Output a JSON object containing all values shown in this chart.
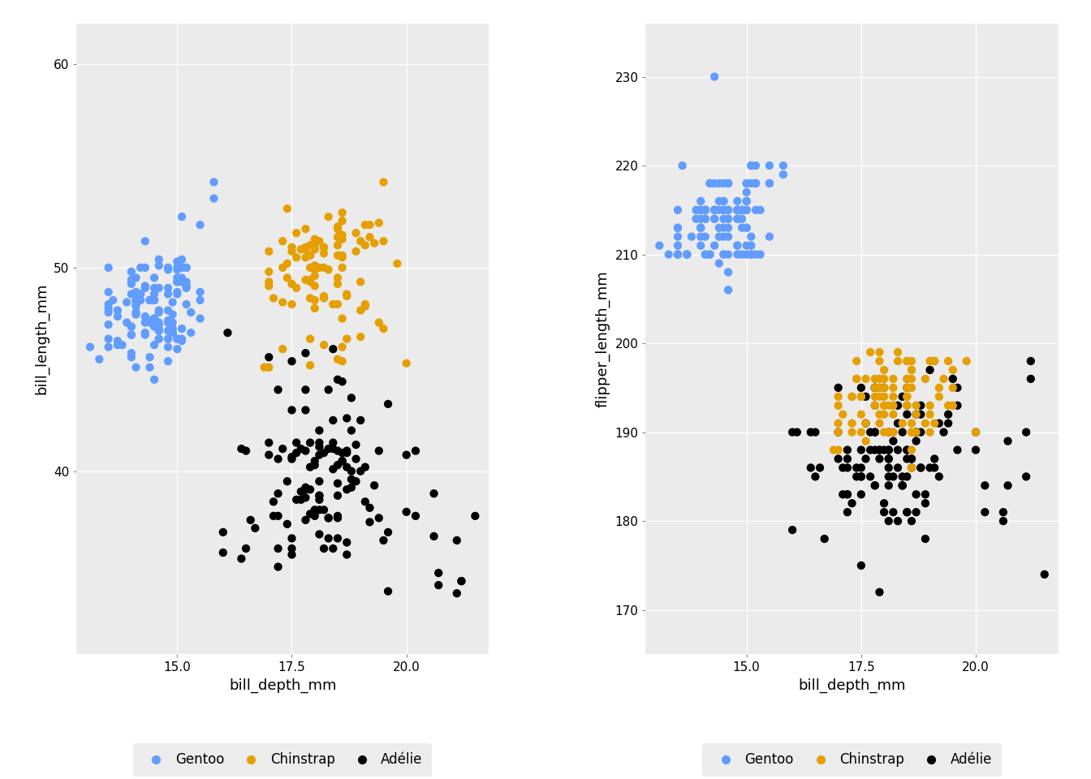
{
  "background_color": "#EBEBEB",
  "grid_color": "#FFFFFF",
  "point_size": 55,
  "alpha": 1.0,
  "xlabel": "bill_depth_mm",
  "ylabel1": "bill_length_mm",
  "ylabel2": "flipper_length_mm",
  "xlim": [
    12.8,
    21.8
  ],
  "ylim1": [
    31,
    62
  ],
  "ylim2": [
    165,
    236
  ],
  "xticks": [
    15.0,
    17.5,
    20.0
  ],
  "yticks1": [
    40,
    50,
    60
  ],
  "yticks2": [
    170,
    180,
    190,
    200,
    210,
    220,
    230
  ],
  "legend_labels": [
    "Gentoo",
    "Chinstrap",
    "Adélie"
  ],
  "legend_colors": [
    "#619CFF",
    "#E69F00",
    "#000000"
  ],
  "tick_labelsize": 11,
  "axis_labelsize": 13
}
